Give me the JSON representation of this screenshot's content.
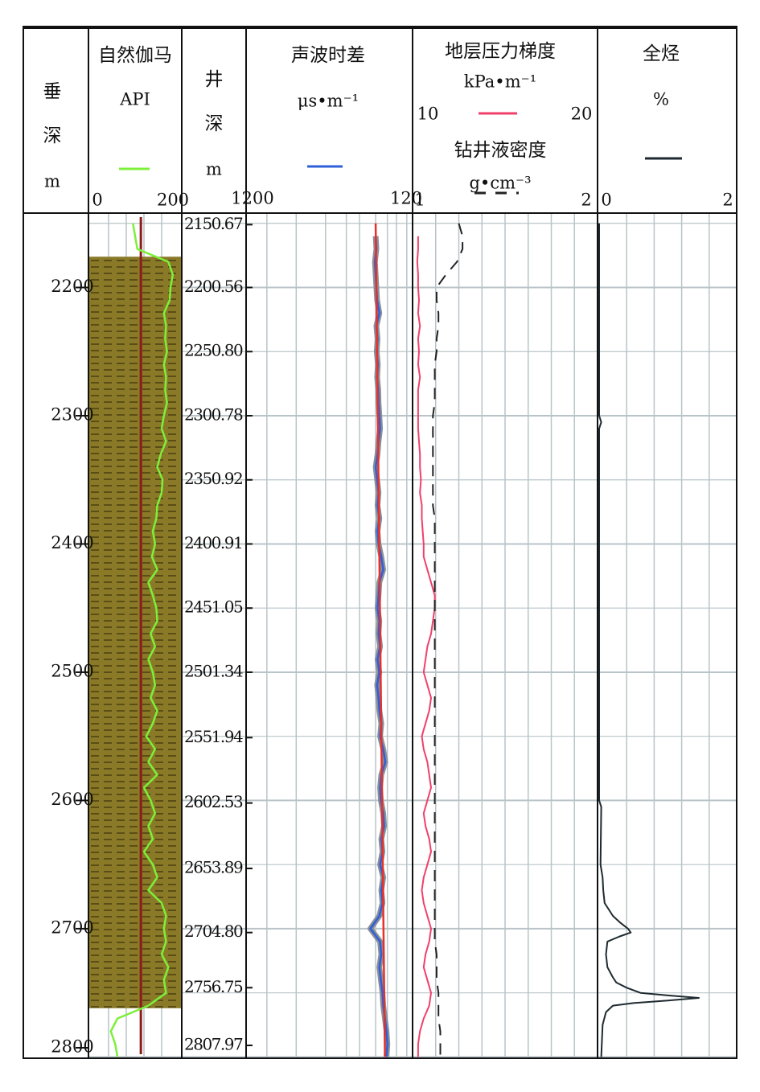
{
  "chart_data": {
    "type": "well_log",
    "depth_track": {
      "title": [
        "垂",
        "深"
      ],
      "unit": "m",
      "ylim": [
        2142,
        2801
      ],
      "yticks": [
        2200,
        2300,
        2400,
        2500,
        2600,
        2700,
        2800
      ]
    },
    "md_track": {
      "title": [
        "井",
        "深"
      ],
      "unit": "m",
      "ticks": [
        {
          "value": 2151,
          "label": "2150.67"
        },
        {
          "value": 2200,
          "label": "2200.56"
        },
        {
          "value": 2250,
          "label": "2250.80"
        },
        {
          "value": 2300,
          "label": "2300.78"
        },
        {
          "value": 2350,
          "label": "2350.92"
        },
        {
          "value": 2400,
          "label": "2400.91"
        },
        {
          "value": 2450,
          "label": "2451.05"
        },
        {
          "value": 2500,
          "label": "2501.34"
        },
        {
          "value": 2551,
          "label": "2551.94"
        },
        {
          "value": 2602,
          "label": "2602.53"
        },
        {
          "value": 2653,
          "label": "2653.89"
        },
        {
          "value": 2703,
          "label": "2704.80"
        },
        {
          "value": 2746,
          "label": "2756.75"
        },
        {
          "value": 2791,
          "label": "2807.97"
        }
      ]
    },
    "hgrid": [
      2150,
      2200,
      2250,
      2300,
      2350,
      2400,
      2450,
      2500,
      2550,
      2600,
      2650,
      2700,
      2750,
      2800
    ],
    "depths": [
      2150,
      2160,
      2170,
      2180,
      2190,
      2200,
      2210,
      2220,
      2230,
      2240,
      2250,
      2260,
      2270,
      2280,
      2290,
      2300,
      2310,
      2320,
      2330,
      2340,
      2350,
      2360,
      2370,
      2380,
      2390,
      2400,
      2410,
      2420,
      2430,
      2440,
      2450,
      2460,
      2470,
      2480,
      2490,
      2500,
      2510,
      2520,
      2530,
      2540,
      2550,
      2560,
      2570,
      2580,
      2590,
      2600,
      2610,
      2620,
      2630,
      2640,
      2650,
      2660,
      2670,
      2680,
      2690,
      2700,
      2710,
      2720,
      2730,
      2740,
      2750,
      2760,
      2770,
      2780,
      2790,
      2800
    ],
    "gamma_ray": {
      "title": "自然伽马",
      "unit": "API",
      "xlim": [
        0,
        200
      ],
      "xticks": [
        0,
        200
      ],
      "xgrid": [
        40,
        80,
        120,
        160
      ],
      "color": "#7cf03a",
      "baseline": 113,
      "baseline_color": "#8b1a1a",
      "lithology": {
        "top": 2176,
        "base": 2762,
        "color": "#8a7a28"
      },
      "values": [
        95,
        100,
        105,
        175,
        185,
        180,
        178,
        165,
        170,
        168,
        172,
        165,
        170,
        168,
        172,
        165,
        160,
        170,
        158,
        150,
        162,
        160,
        150,
        148,
        140,
        145,
        138,
        150,
        130,
        140,
        148,
        150,
        135,
        145,
        130,
        140,
        145,
        135,
        150,
        140,
        125,
        145,
        130,
        150,
        120,
        135,
        145,
        130,
        140,
        120,
        140,
        150,
        130,
        160,
        170,
        165,
        170,
        160,
        175,
        165,
        170,
        130,
        60,
        45,
        55,
        60
      ]
    },
    "sonic": {
      "title": "声波时差",
      "unit": "μs•m⁻¹",
      "xlim": [
        1200,
        120
      ],
      "log": true,
      "xticks": [
        1200,
        120
      ],
      "xgrid": [
        900,
        600,
        400,
        300,
        250,
        200,
        170,
        150,
        130
      ],
      "color": "#2f5fd8",
      "trend": {
        "depths": [
          2150,
          2800
        ],
        "values": [
          200,
          176
        ],
        "color": "#e8302a"
      },
      "values": [
        null,
        200,
        198,
        202,
        200,
        198,
        196,
        190,
        198,
        195,
        197,
        194,
        196,
        193,
        192,
        190,
        188,
        192,
        195,
        200,
        196,
        192,
        195,
        190,
        195,
        192,
        185,
        180,
        190,
        192,
        195,
        190,
        192,
        188,
        195,
        190,
        196,
        192,
        190,
        185,
        188,
        180,
        175,
        185,
        188,
        186,
        180,
        178,
        185,
        182,
        188,
        180,
        185,
        182,
        190,
        215,
        188,
        185,
        190,
        186,
        182,
        180,
        176,
        172,
        170,
        172
      ]
    },
    "pressure": {
      "title": "地层压力梯度",
      "unit": "kPa•m⁻¹",
      "xlim": [
        10,
        20
      ],
      "xticks": [
        10,
        20
      ],
      "color": "#f0406a",
      "values": [
        null,
        10.3,
        10.3,
        10.25,
        10.3,
        10.3,
        10.35,
        10.3,
        10.4,
        10.3,
        10.35,
        10.3,
        10.4,
        10.3,
        10.3,
        10.3,
        10.3,
        10.35,
        10.4,
        10.4,
        10.45,
        10.4,
        10.5,
        10.5,
        10.55,
        10.6,
        10.6,
        10.8,
        11.0,
        11.2,
        11.2,
        11.1,
        11.0,
        10.8,
        10.7,
        10.6,
        10.8,
        11.0,
        10.9,
        10.7,
        10.5,
        10.6,
        10.8,
        10.9,
        11.0,
        10.8,
        10.6,
        10.7,
        10.9,
        11.0,
        10.8,
        10.6,
        10.5,
        10.6,
        10.8,
        11.0,
        10.9,
        10.7,
        10.6,
        10.8,
        11.0,
        10.9,
        10.6,
        10.4,
        10.3,
        10.3
      ]
    },
    "density": {
      "title": "钻井液密度",
      "unit": "g•cm⁻³",
      "xlim": [
        1,
        2
      ],
      "xticks": [
        1,
        2
      ],
      "xgrid": [
        1.125,
        1.25,
        1.375,
        1.5,
        1.625,
        1.75,
        1.875
      ],
      "color": "#222222",
      "values": [
        1.25,
        1.27,
        1.27,
        1.24,
        1.18,
        1.13,
        1.13,
        1.14,
        1.14,
        1.13,
        1.13,
        1.12,
        1.12,
        1.12,
        1.12,
        1.11,
        1.11,
        1.11,
        1.11,
        1.11,
        1.11,
        1.11,
        1.11,
        1.12,
        1.12,
        1.12,
        1.12,
        1.12,
        1.12,
        1.12,
        1.12,
        1.12,
        1.12,
        1.12,
        1.12,
        1.12,
        1.12,
        1.12,
        1.12,
        1.12,
        1.12,
        1.12,
        1.12,
        1.12,
        1.12,
        1.12,
        1.12,
        1.12,
        1.12,
        1.12,
        1.12,
        1.12,
        1.12,
        1.12,
        1.12,
        1.12,
        1.12,
        1.13,
        1.13,
        1.13,
        1.14,
        1.14,
        1.14,
        1.15,
        1.15,
        1.15
      ]
    },
    "total_gas": {
      "title": "全烃",
      "unit": "%",
      "xlim": [
        0,
        2
      ],
      "xticks": [
        0,
        2
      ],
      "xgrid": [
        0.4,
        0.8,
        1.2,
        1.6
      ],
      "color": "#1e2a30",
      "depths": [
        2150,
        2300,
        2305,
        2310,
        2600,
        2605,
        2650,
        2660,
        2670,
        2680,
        2690,
        2695,
        2700,
        2703,
        2706,
        2710,
        2720,
        2730,
        2738,
        2742,
        2746,
        2750,
        2752,
        2754,
        2756,
        2758,
        2760,
        2765,
        2775,
        2800
      ],
      "values": [
        0,
        0,
        0.03,
        0,
        0,
        0.03,
        0.02,
        0.05,
        0.06,
        0.08,
        0.2,
        0.3,
        0.42,
        0.46,
        0.3,
        0.12,
        0.1,
        0.12,
        0.2,
        0.25,
        0.4,
        0.6,
        1.0,
        1.45,
        1.0,
        0.5,
        0.2,
        0.1,
        0.05,
        0.03
      ]
    }
  }
}
